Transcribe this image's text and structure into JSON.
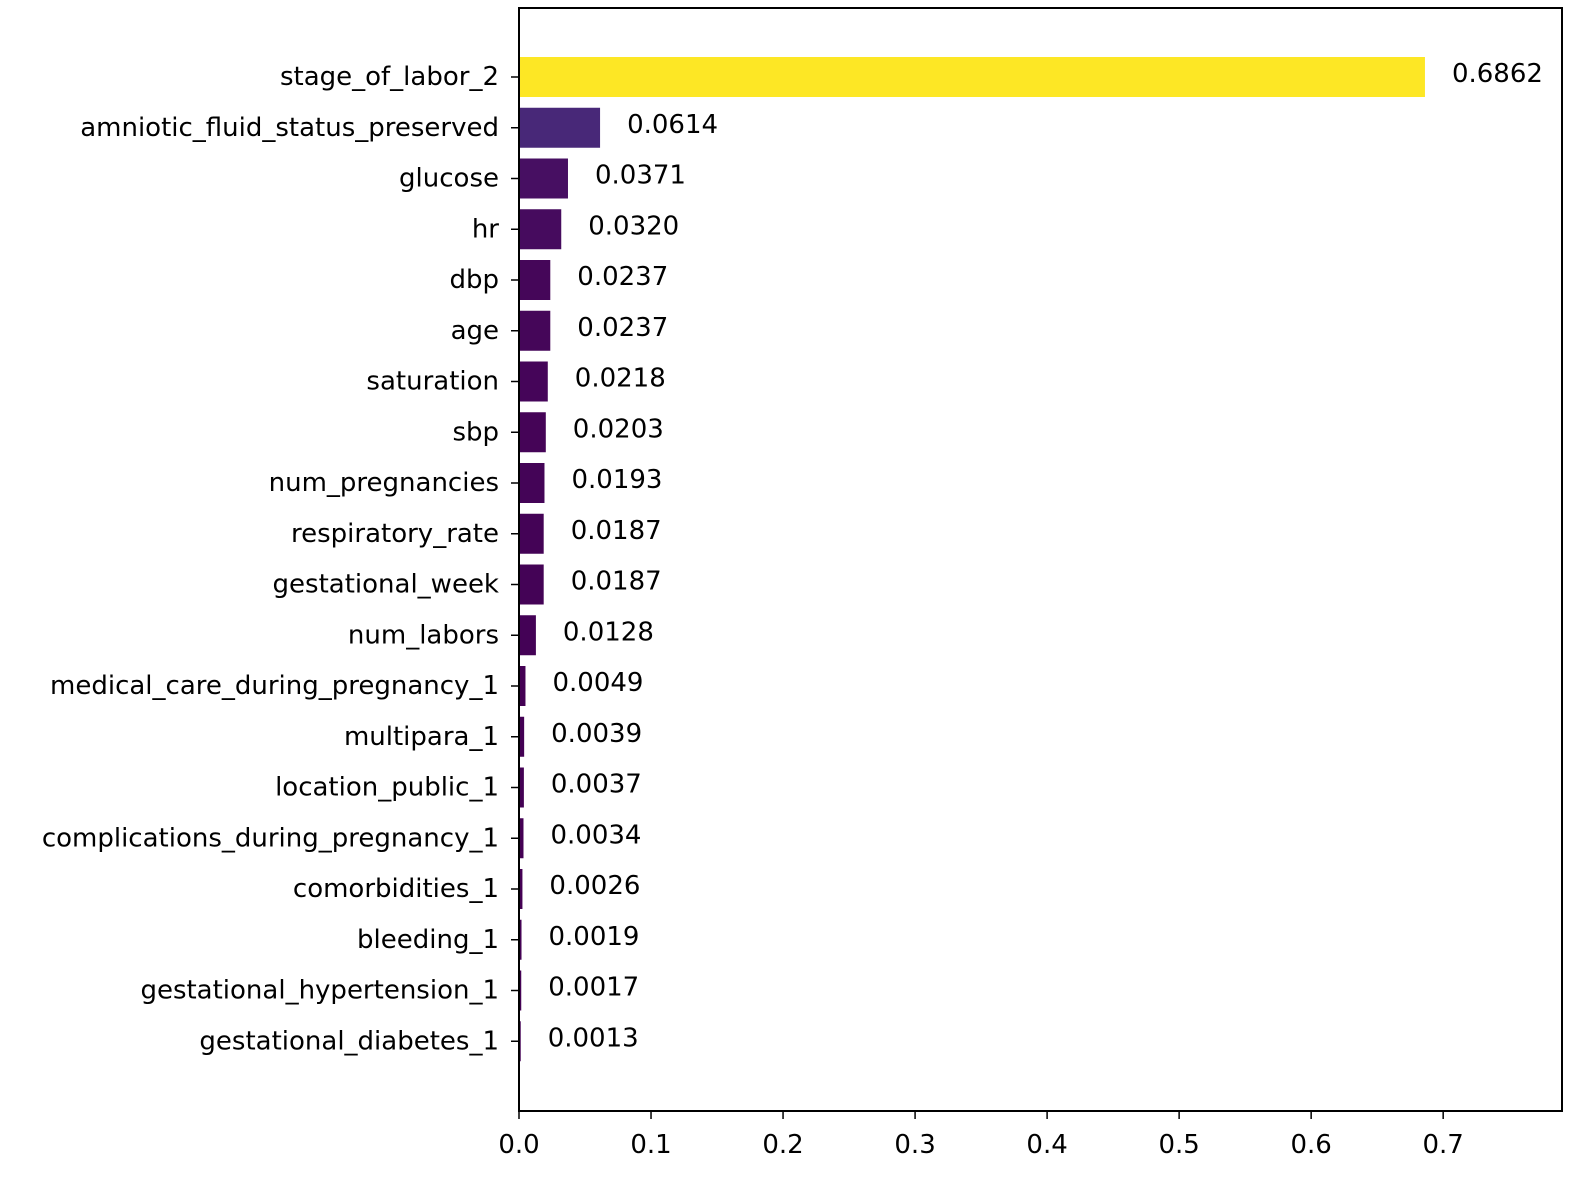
{
  "chart_data": {
    "type": "bar",
    "orientation": "horizontal",
    "title": "",
    "xlabel": "",
    "ylabel": "",
    "xlim": [
      0,
      0.79
    ],
    "xticks": [
      0.0,
      0.1,
      0.2,
      0.3,
      0.4,
      0.5,
      0.6,
      0.7
    ],
    "xtick_labels": [
      "0.0",
      "0.1",
      "0.2",
      "0.3",
      "0.4",
      "0.5",
      "0.6",
      "0.7"
    ],
    "grid": false,
    "colormap": "viridis",
    "categories": [
      "stage_of_labor_2",
      "amniotic_fluid_status_preserved",
      "glucose",
      "hr",
      "dbp",
      "age",
      "saturation",
      "sbp",
      "num_pregnancies",
      "respiratory_rate",
      "gestational_week",
      "num_labors",
      "medical_care_during_pregnancy_1",
      "multipara_1",
      "location_public_1",
      "complications_during_pregnancy_1",
      "comorbidities_1",
      "bleeding_1",
      "gestational_hypertension_1",
      "gestational_diabetes_1"
    ],
    "values": [
      0.6862,
      0.0614,
      0.0371,
      0.032,
      0.0237,
      0.0237,
      0.0218,
      0.0203,
      0.0193,
      0.0187,
      0.0187,
      0.0128,
      0.0049,
      0.0039,
      0.0037,
      0.0034,
      0.0026,
      0.0019,
      0.0017,
      0.0013
    ],
    "value_labels": [
      "0.6862",
      "0.0614",
      "0.0371",
      "0.0320",
      "0.0237",
      "0.0237",
      "0.0218",
      "0.0203",
      "0.0193",
      "0.0187",
      "0.0187",
      "0.0128",
      "0.0049",
      "0.0039",
      "0.0037",
      "0.0034",
      "0.0026",
      "0.0019",
      "0.0017",
      "0.0013"
    ],
    "colors": [
      "#fde725",
      "#482878",
      "#470f62",
      "#460b5e",
      "#450659",
      "#450659",
      "#450559",
      "#450457",
      "#440457",
      "#440356",
      "#440356",
      "#440256",
      "#440154",
      "#440154",
      "#440154",
      "#440154",
      "#440154",
      "#440154",
      "#440154",
      "#440154"
    ]
  }
}
